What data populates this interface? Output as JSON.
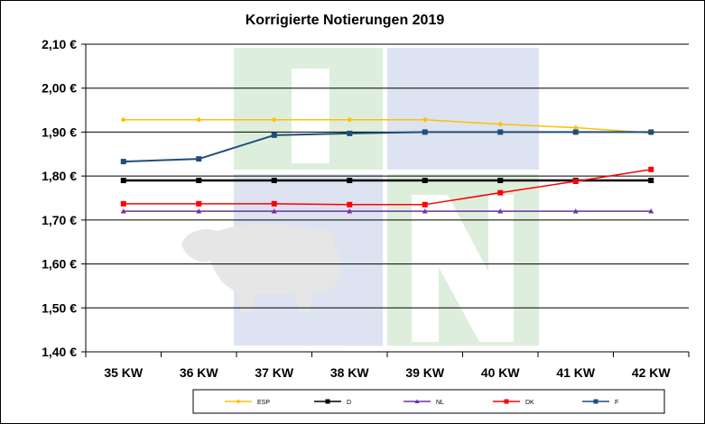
{
  "chart_data": {
    "type": "line",
    "title": "Korrigierte Notierungen 2019",
    "xlabel": "",
    "ylabel": "",
    "categories": [
      "35 KW",
      "36 KW",
      "37 KW",
      "38 KW",
      "39 KW",
      "40 KW",
      "41 KW",
      "42 KW"
    ],
    "ylim": [
      1.4,
      2.1
    ],
    "yticks": [
      "2,10 €",
      "2,00 €",
      "1,90 €",
      "1,80 €",
      "1,70 €",
      "1,60 €",
      "1,50 €",
      "1,40 €"
    ],
    "grid": "horizontal",
    "legend_position": "bottom",
    "series": [
      {
        "name": "ESP",
        "color": "#FFC000",
        "marker": "diamond",
        "values": [
          1.928,
          1.928,
          1.928,
          1.928,
          1.928,
          1.918,
          1.91,
          1.898
        ]
      },
      {
        "name": "D",
        "color": "#000000",
        "marker": "square",
        "values": [
          1.79,
          1.79,
          1.79,
          1.79,
          1.79,
          1.79,
          1.79,
          1.79
        ]
      },
      {
        "name": "NL",
        "color": "#7030A0",
        "marker": "triangle",
        "values": [
          1.72,
          1.72,
          1.72,
          1.72,
          1.72,
          1.72,
          1.72,
          1.72
        ]
      },
      {
        "name": "DK",
        "color": "#FF0000",
        "marker": "square",
        "values": [
          1.737,
          1.737,
          1.737,
          1.735,
          1.735,
          1.762,
          1.788,
          1.815
        ]
      },
      {
        "name": "F",
        "color": "#1F4E79",
        "marker": "square",
        "values": [
          1.833,
          1.839,
          1.893,
          1.897,
          1.9,
          1.9,
          1.9,
          1.9
        ]
      }
    ]
  }
}
